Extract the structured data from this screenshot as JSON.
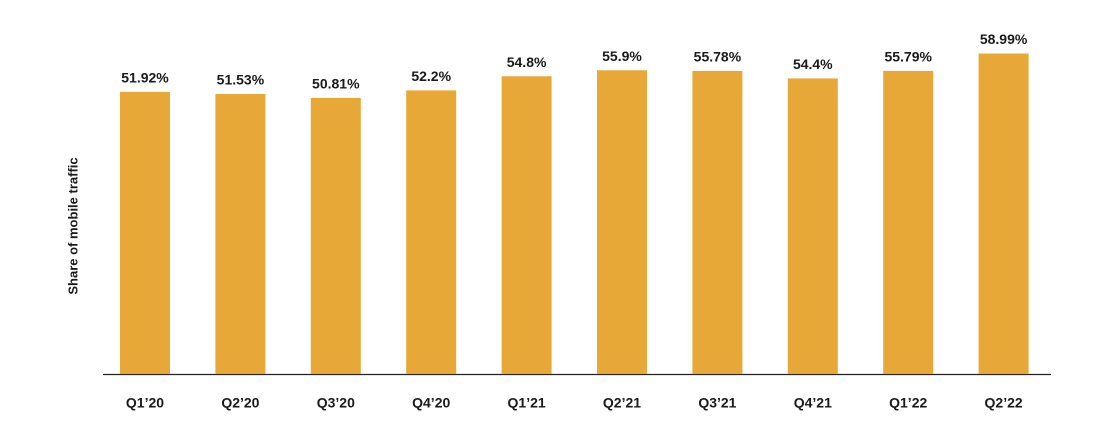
{
  "chart_data": {
    "type": "bar",
    "y_label": "Share of mobile traffic",
    "categories": [
      "Q1’20",
      "Q2’20",
      "Q3’20",
      "Q4’20",
      "Q1’21",
      "Q2’21",
      "Q3’21",
      "Q4’21",
      "Q1’22",
      "Q2’22"
    ],
    "values": [
      51.92,
      51.53,
      50.81,
      52.2,
      54.8,
      55.9,
      55.78,
      54.4,
      55.79,
      58.99
    ],
    "value_labels": [
      "51.92%",
      "51.53%",
      "50.81%",
      "52.2%",
      "54.8%",
      "55.9%",
      "55.78%",
      "54.4%",
      "55.79%",
      "58.99%"
    ],
    "color": "#e8a838",
    "ylim": [
      0,
      60
    ]
  }
}
